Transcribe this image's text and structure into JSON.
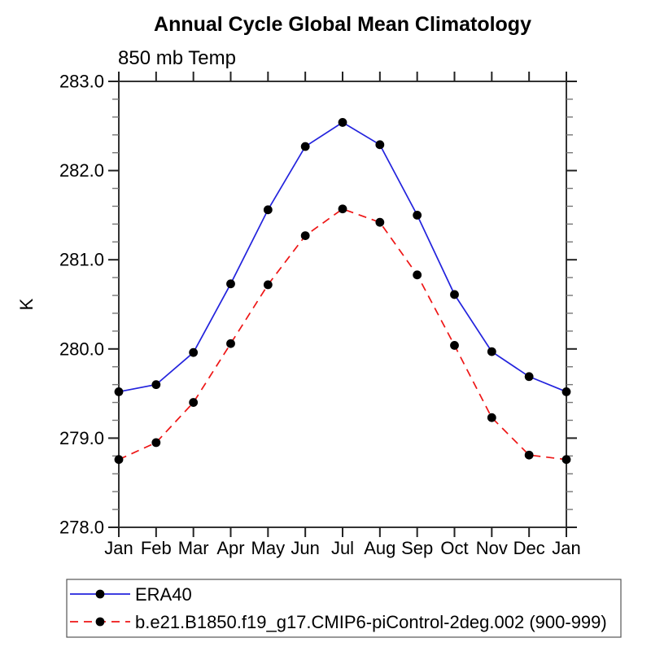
{
  "title": "Annual Cycle Global Mean Climatology",
  "subtitle": "850 mb Temp",
  "ylabel": "K",
  "chart_data": {
    "type": "line",
    "categories": [
      "Jan",
      "Feb",
      "Mar",
      "Apr",
      "May",
      "Jun",
      "Jul",
      "Aug",
      "Sep",
      "Oct",
      "Nov",
      "Dec",
      "Jan"
    ],
    "series": [
      {
        "name": "ERA40",
        "color": "#2323dd",
        "line_style": "solid",
        "marker": "black-dot",
        "marker_color": "#000000",
        "values": [
          279.52,
          279.6,
          279.96,
          280.73,
          281.56,
          282.27,
          282.54,
          282.29,
          281.5,
          280.61,
          279.97,
          279.69,
          279.52
        ]
      },
      {
        "name": "b.e21.B1850.f19_g17.CMIP6-piControl-2deg.002 (900-999)",
        "color": "#ee1515",
        "line_style": "dashed",
        "marker": "black-dot",
        "marker_color": "#000000",
        "values": [
          278.76,
          278.95,
          279.4,
          280.06,
          280.72,
          281.27,
          281.57,
          281.42,
          280.83,
          280.04,
          279.23,
          278.81,
          278.76
        ]
      }
    ],
    "xlabel": "",
    "ylabel": "K",
    "ylim": [
      278.0,
      283.0
    ],
    "ytick_step": 1.0,
    "ytick_minor_step": 0.2,
    "ytick_labels": [
      "278.0",
      "279.0",
      "280.0",
      "281.0",
      "282.0",
      "283.0"
    ],
    "grid": false,
    "legend_position": "bottom-left"
  }
}
